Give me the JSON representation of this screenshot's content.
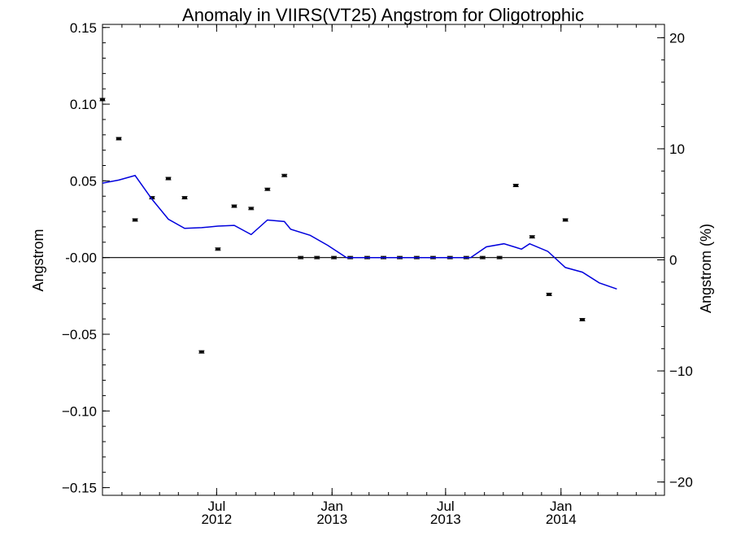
{
  "chart_data": {
    "type": "scatter",
    "title": "Anomaly in VIIRS(VT25) Angstrom for Oligotrophic",
    "ylabel": "Angstrom",
    "y2label": "Angstrom (%)",
    "ylim": [
      -0.155,
      0.152
    ],
    "y2lim": [
      -21.2,
      21.2
    ],
    "y_ticks": [
      {
        "value": 0.15,
        "label": "0.15"
      },
      {
        "value": 0.1,
        "label": "0.10"
      },
      {
        "value": 0.05,
        "label": "0.05"
      },
      {
        "value": 0.0,
        "label": "-0.00"
      },
      {
        "value": -0.05,
        "label": "−0.05"
      },
      {
        "value": -0.1,
        "label": "−0.10"
      },
      {
        "value": -0.15,
        "label": "−0.15"
      }
    ],
    "y2_ticks": [
      {
        "value": 20,
        "label": "20"
      },
      {
        "value": 10,
        "label": "10"
      },
      {
        "value": 0,
        "label": "0"
      },
      {
        "value": -10,
        "label": "−10"
      },
      {
        "value": -20,
        "label": "−20"
      }
    ],
    "xlim": [
      "2012-01-01",
      "2014-06-15"
    ],
    "x_ticks": [
      {
        "date": "2012-07-01",
        "line1": "Jul",
        "line2": "2012"
      },
      {
        "date": "2013-01-01",
        "line1": "Jan",
        "line2": "2013"
      },
      {
        "date": "2013-07-01",
        "line1": "Jul",
        "line2": "2013"
      },
      {
        "date": "2014-01-01",
        "line1": "Jan",
        "line2": "2014"
      }
    ],
    "zero_line": 0,
    "series": [
      {
        "kind": "points_with_errorbars",
        "axis": "left",
        "color": "#000000",
        "points": [
          {
            "x": "2012-01-01",
            "y": 0.103
          },
          {
            "x": "2012-01-27",
            "y": 0.0775
          },
          {
            "x": "2012-02-22",
            "y": 0.0245
          },
          {
            "x": "2012-03-20",
            "y": 0.039
          },
          {
            "x": "2012-04-15",
            "y": 0.0515
          },
          {
            "x": "2012-05-11",
            "y": 0.039
          },
          {
            "x": "2012-06-07",
            "y": -0.0615
          },
          {
            "x": "2012-07-03",
            "y": 0.0055
          },
          {
            "x": "2012-07-29",
            "y": 0.0335
          },
          {
            "x": "2012-08-25",
            "y": 0.032
          },
          {
            "x": "2012-09-20",
            "y": 0.0445
          },
          {
            "x": "2012-10-17",
            "y": 0.0535
          },
          {
            "x": "2012-11-12",
            "y": 0.0
          },
          {
            "x": "2012-12-08",
            "y": 0.0
          },
          {
            "x": "2013-01-04",
            "y": 0.0
          },
          {
            "x": "2013-01-30",
            "y": 0.0
          },
          {
            "x": "2013-02-26",
            "y": 0.0
          },
          {
            "x": "2013-03-24",
            "y": 0.0
          },
          {
            "x": "2013-04-19",
            "y": 0.0
          },
          {
            "x": "2013-05-16",
            "y": 0.0
          },
          {
            "x": "2013-06-11",
            "y": 0.0
          },
          {
            "x": "2013-07-08",
            "y": 0.0
          },
          {
            "x": "2013-08-03",
            "y": 0.0
          },
          {
            "x": "2013-08-29",
            "y": 0.0
          },
          {
            "x": "2013-09-25",
            "y": 0.0
          },
          {
            "x": "2013-10-21",
            "y": 0.047
          },
          {
            "x": "2013-11-16",
            "y": 0.0135
          },
          {
            "x": "2013-12-13",
            "y": -0.024
          },
          {
            "x": "2014-01-08",
            "y": 0.0245
          },
          {
            "x": "2014-02-04",
            "y": -0.0405
          }
        ]
      },
      {
        "kind": "line",
        "axis": "left",
        "color": "#0000dd",
        "points": [
          {
            "x": "2012-01-01",
            "y": 0.0485
          },
          {
            "x": "2012-01-27",
            "y": 0.0505
          },
          {
            "x": "2012-02-22",
            "y": 0.0535
          },
          {
            "x": "2012-03-20",
            "y": 0.038
          },
          {
            "x": "2012-04-15",
            "y": 0.025
          },
          {
            "x": "2012-05-11",
            "y": 0.019
          },
          {
            "x": "2012-06-07",
            "y": 0.0195
          },
          {
            "x": "2012-07-03",
            "y": 0.0205
          },
          {
            "x": "2012-07-29",
            "y": 0.021
          },
          {
            "x": "2012-08-25",
            "y": 0.015
          },
          {
            "x": "2012-09-20",
            "y": 0.0245
          },
          {
            "x": "2012-10-17",
            "y": 0.0235
          },
          {
            "x": "2012-10-27",
            "y": 0.0185
          },
          {
            "x": "2012-11-27",
            "y": 0.0145
          },
          {
            "x": "2012-12-25",
            "y": 0.008
          },
          {
            "x": "2013-01-24",
            "y": 0.0
          },
          {
            "x": "2013-02-26",
            "y": 0.0
          },
          {
            "x": "2013-08-10",
            "y": 0.0
          },
          {
            "x": "2013-09-04",
            "y": 0.007
          },
          {
            "x": "2013-10-02",
            "y": 0.009
          },
          {
            "x": "2013-10-30",
            "y": 0.0055
          },
          {
            "x": "2013-11-12",
            "y": 0.009
          },
          {
            "x": "2013-12-11",
            "y": 0.004
          },
          {
            "x": "2014-01-08",
            "y": -0.0065
          },
          {
            "x": "2014-02-04",
            "y": -0.0095
          },
          {
            "x": "2014-03-03",
            "y": -0.0165
          },
          {
            "x": "2014-03-31",
            "y": -0.0205
          }
        ]
      }
    ]
  }
}
